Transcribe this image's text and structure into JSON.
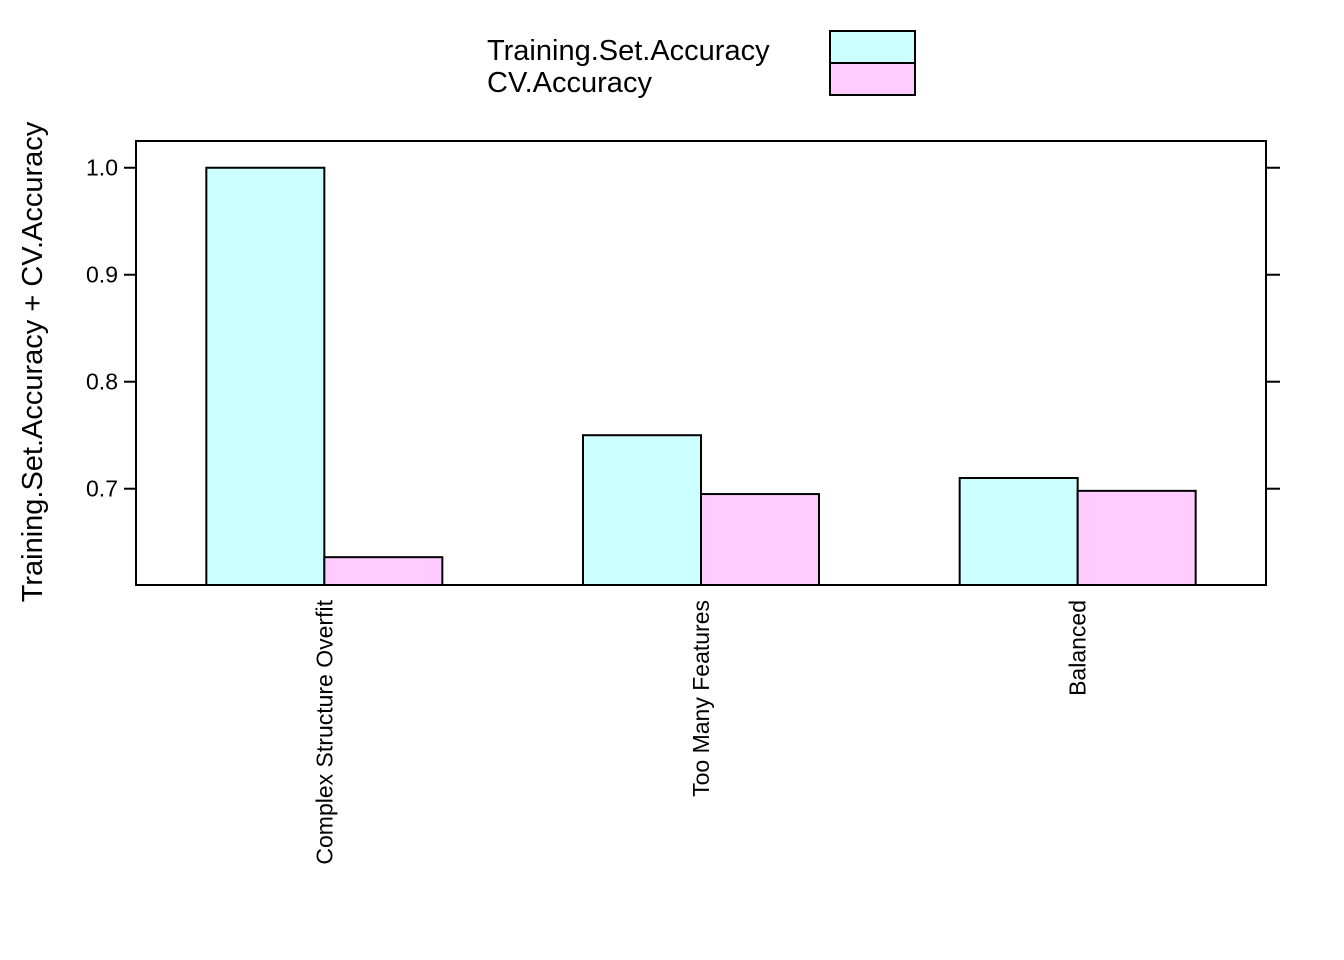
{
  "chart_data": {
    "type": "bar",
    "title": "",
    "xlabel": "",
    "ylabel": "Training.Set.Accuracy + CV.Accuracy",
    "categories": [
      "Complex Structure Overfit",
      "Too Many Features",
      "Balanced"
    ],
    "series": [
      {
        "name": "Training.Set.Accuracy",
        "values": [
          1.0,
          0.75,
          0.71
        ],
        "color": "#CCFFFF"
      },
      {
        "name": "CV.Accuracy",
        "values": [
          0.636,
          0.695,
          0.698
        ],
        "color": "#FFCCFF"
      }
    ],
    "ylim": [
      0.61,
      1.025
    ],
    "yticks": [
      0.7,
      0.8,
      0.9,
      1.0
    ],
    "ytick_labels": [
      "0.7",
      "0.8",
      "0.9",
      "1.0"
    ],
    "grid": false,
    "legend_position": "top"
  }
}
